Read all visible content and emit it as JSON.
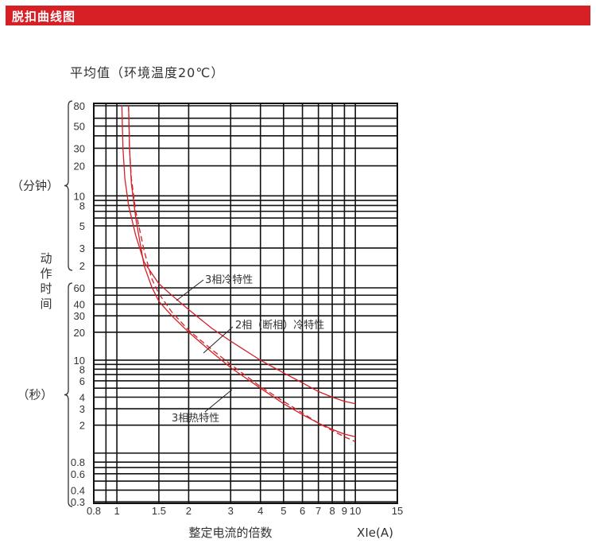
{
  "header": {
    "title": "脱扣曲线图",
    "accent_color": "#d71f26"
  },
  "chart_data": {
    "type": "line",
    "title": "平均值（环境温度20℃）",
    "xlabel": "整定电流的倍数",
    "xunit": "XIe(A)",
    "x_scale": "log",
    "xlim": [
      0.8,
      15
    ],
    "x_ticks": [
      {
        "value": 0.8,
        "label": "0.8"
      },
      {
        "value": 1,
        "label": "1"
      },
      {
        "value": 1.5,
        "label": "1.5"
      },
      {
        "value": 2,
        "label": "2"
      },
      {
        "value": 3,
        "label": "3"
      },
      {
        "value": 4,
        "label": "4"
      },
      {
        "value": 5,
        "label": "5"
      },
      {
        "value": 6,
        "label": "6"
      },
      {
        "value": 7,
        "label": "7"
      },
      {
        "value": 8,
        "label": "8"
      },
      {
        "value": 9,
        "label": "9"
      },
      {
        "value": 10,
        "label": "10"
      },
      {
        "value": 15,
        "label": "15"
      }
    ],
    "ylabel": "动作时间",
    "y_scale": "log",
    "ylim_seconds": [
      0.3,
      4800
    ],
    "y_groups": [
      {
        "label": "（分钟）",
        "unit": "min",
        "ticks": [
          {
            "value_s": 4800,
            "label": "80"
          },
          {
            "value_s": 3000,
            "label": "50"
          },
          {
            "value_s": 1800,
            "label": "30"
          },
          {
            "value_s": 1200,
            "label": "20"
          },
          {
            "value_s": 600,
            "label": "10"
          },
          {
            "value_s": 480,
            "label": "8"
          },
          {
            "value_s": 300,
            "label": "5"
          },
          {
            "value_s": 180,
            "label": "3"
          },
          {
            "value_s": 120,
            "label": "2"
          }
        ]
      },
      {
        "label": "（秒）",
        "unit": "s",
        "ticks": [
          {
            "value_s": 60,
            "label": "60"
          },
          {
            "value_s": 40,
            "label": "40"
          },
          {
            "value_s": 30,
            "label": "30"
          },
          {
            "value_s": 20,
            "label": "20"
          },
          {
            "value_s": 10,
            "label": "10"
          },
          {
            "value_s": 8,
            "label": "8"
          },
          {
            "value_s": 6,
            "label": "6"
          },
          {
            "value_s": 4,
            "label": "4"
          },
          {
            "value_s": 3,
            "label": "3"
          },
          {
            "value_s": 2,
            "label": "2"
          },
          {
            "value_s": 0.8,
            "label": "0.8"
          },
          {
            "value_s": 0.6,
            "label": "0.6"
          },
          {
            "value_s": 0.4,
            "label": "0.4"
          },
          {
            "value_s": 0.3,
            "label": "0.3"
          }
        ]
      }
    ],
    "y_grid_seconds": [
      4800,
      3600,
      3000,
      2400,
      1800,
      1200,
      600,
      540,
      480,
      420,
      360,
      300,
      180,
      120,
      60,
      50,
      40,
      30,
      20,
      10,
      9,
      8,
      7,
      6,
      5,
      4,
      3,
      2,
      1,
      0.8,
      0.7,
      0.6,
      0.5,
      0.4,
      0.3
    ],
    "x_grid": [
      0.8,
      0.9,
      1,
      1.5,
      2,
      3,
      4,
      5,
      6,
      7,
      8,
      9,
      10,
      15
    ],
    "grid": true,
    "series": [
      {
        "name": "3相冷特性",
        "style": "solid",
        "color": "#d71f26",
        "points": [
          [
            1.05,
            4800
          ],
          [
            1.06,
            1800
          ],
          [
            1.08,
            900
          ],
          [
            1.12,
            480
          ],
          [
            1.2,
            240
          ],
          [
            1.3,
            130
          ],
          [
            1.5,
            68
          ],
          [
            1.7,
            50
          ],
          [
            2,
            35
          ],
          [
            2.5,
            22
          ],
          [
            3,
            16
          ],
          [
            4,
            10
          ],
          [
            5,
            7.3
          ],
          [
            6,
            5.7
          ],
          [
            7,
            4.6
          ],
          [
            8,
            4
          ],
          [
            9,
            3.6
          ],
          [
            10,
            3.4
          ]
        ]
      },
      {
        "name": "2相（断相）冷特性",
        "style": "dashed",
        "color": "#d71f26",
        "points": [
          [
            1.12,
            4800
          ],
          [
            1.13,
            1800
          ],
          [
            1.15,
            900
          ],
          [
            1.2,
            420
          ],
          [
            1.3,
            170
          ],
          [
            1.4,
            80
          ],
          [
            1.5,
            52
          ],
          [
            1.7,
            33
          ],
          [
            2,
            21
          ],
          [
            2.5,
            13
          ],
          [
            3,
            9
          ],
          [
            4,
            5.2
          ],
          [
            5,
            3.6
          ],
          [
            6,
            2.7
          ],
          [
            7,
            2.1
          ],
          [
            8,
            1.75
          ],
          [
            9,
            1.5
          ],
          [
            10,
            1.33
          ]
        ]
      },
      {
        "name": "3相热特性",
        "style": "solid",
        "color": "#d71f26",
        "points": [
          [
            1.12,
            4800
          ],
          [
            1.13,
            1800
          ],
          [
            1.15,
            800
          ],
          [
            1.2,
            360
          ],
          [
            1.3,
            120
          ],
          [
            1.4,
            62
          ],
          [
            1.5,
            43
          ],
          [
            1.7,
            30
          ],
          [
            2,
            20
          ],
          [
            2.5,
            12.2
          ],
          [
            3,
            8.3
          ],
          [
            4,
            5
          ],
          [
            5,
            3.4
          ],
          [
            6,
            2.6
          ],
          [
            7,
            2.1
          ],
          [
            8,
            1.8
          ],
          [
            9,
            1.6
          ],
          [
            10,
            1.5
          ]
        ]
      }
    ],
    "annotations": [
      {
        "text": "3相冷特性",
        "target_series": 0
      },
      {
        "text": "2相（断相）冷特性",
        "target_series": 1
      },
      {
        "text": "3相热特性",
        "target_series": 2
      }
    ]
  }
}
